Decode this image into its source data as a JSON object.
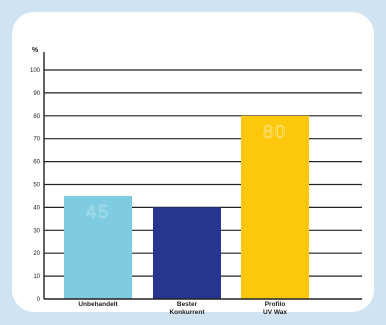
{
  "chart_data": {
    "type": "bar",
    "ylabel": "%",
    "ylim": [
      0,
      100
    ],
    "yticks": [
      0,
      10,
      20,
      30,
      40,
      50,
      60,
      70,
      80,
      90,
      100
    ],
    "grid": true,
    "categories": [
      [
        "Unbehandelt"
      ],
      [
        "Bester",
        "Konkurrent"
      ],
      [
        "Profilo",
        "UV Wax"
      ]
    ],
    "values": [
      45,
      40,
      80
    ],
    "data_labels": [
      "45",
      "",
      "80"
    ],
    "colors": [
      "#7fcce0",
      "#26368f",
      "#fdc70c"
    ],
    "label_colors": [
      "#a8dde9",
      "#4a5aa8",
      "#fde27a"
    ],
    "axis_color": "#222222",
    "background": "#cfe3f2"
  }
}
